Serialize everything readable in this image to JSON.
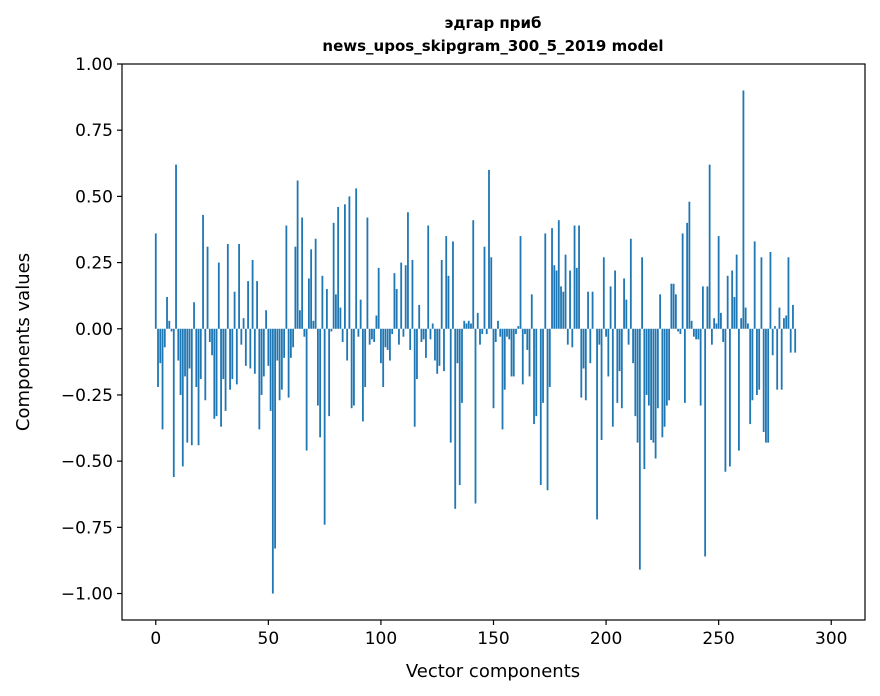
{
  "chart_data": {
    "type": "bar",
    "title_line1": "эдгар приб",
    "title_line2": "news_upos_skipgram_300_5_2019 model",
    "xlabel": "Vector components",
    "ylabel": "Components values",
    "xlim": [
      -15,
      315
    ],
    "ylim": [
      -1.1,
      1.0
    ],
    "xticks": [
      0,
      50,
      100,
      150,
      200,
      250,
      300
    ],
    "xtick_labels": [
      "0",
      "50",
      "100",
      "150",
      "200",
      "250",
      "300"
    ],
    "yticks": [
      1.0,
      0.75,
      0.5,
      0.25,
      0.0,
      -0.25,
      -0.5,
      -0.75,
      -1.0
    ],
    "ytick_labels": [
      "1.00",
      "0.75",
      "0.50",
      "0.25",
      "0.00",
      "−0.25",
      "−0.50",
      "−0.75",
      "−1.00"
    ],
    "bar_color": "#1f77b4",
    "grid": false,
    "values": [
      0.36,
      -0.22,
      -0.13,
      -0.38,
      -0.07,
      0.12,
      0.03,
      -0.01,
      -0.56,
      0.62,
      -0.12,
      -0.25,
      -0.52,
      -0.18,
      -0.43,
      -0.15,
      -0.44,
      0.1,
      -0.22,
      -0.44,
      -0.19,
      0.43,
      -0.27,
      0.31,
      -0.05,
      -0.1,
      -0.34,
      -0.33,
      0.25,
      -0.37,
      -0.19,
      -0.31,
      0.32,
      -0.23,
      -0.19,
      0.14,
      -0.21,
      0.32,
      -0.06,
      0.04,
      -0.14,
      0.18,
      -0.15,
      0.26,
      -0.17,
      0.18,
      -0.38,
      -0.25,
      -0.18,
      0.07,
      -0.14,
      -0.31,
      -1.0,
      -0.83,
      -0.12,
      -0.27,
      -0.23,
      -0.11,
      0.39,
      -0.26,
      -0.11,
      -0.07,
      0.31,
      0.56,
      0.07,
      0.42,
      -0.03,
      -0.46,
      0.19,
      0.3,
      0.03,
      0.34,
      -0.29,
      -0.41,
      0.2,
      -0.74,
      0.15,
      -0.33,
      -0.01,
      0.4,
      0.13,
      0.46,
      0.08,
      -0.05,
      0.47,
      -0.12,
      0.5,
      -0.3,
      -0.29,
      0.53,
      -0.03,
      0.11,
      -0.35,
      -0.22,
      0.42,
      -0.06,
      -0.04,
      -0.05,
      0.05,
      0.23,
      -0.13,
      -0.22,
      -0.07,
      -0.08,
      -0.12,
      -0.02,
      0.21,
      0.15,
      -0.06,
      0.25,
      -0.03,
      0.24,
      0.44,
      -0.08,
      0.26,
      -0.37,
      -0.19,
      0.09,
      -0.05,
      -0.04,
      -0.11,
      0.39,
      -0.04,
      0.02,
      -0.12,
      -0.17,
      -0.14,
      0.26,
      -0.16,
      0.35,
      0.2,
      -0.43,
      0.33,
      -0.68,
      -0.13,
      -0.59,
      -0.28,
      0.03,
      0.02,
      0.03,
      0.02,
      0.41,
      -0.66,
      0.06,
      -0.06,
      -0.02,
      0.31,
      -0.02,
      0.6,
      0.27,
      -0.3,
      -0.05,
      0.03,
      -0.03,
      -0.38,
      -0.23,
      -0.03,
      -0.04,
      -0.18,
      -0.18,
      -0.02,
      0.01,
      0.35,
      -0.21,
      -0.02,
      -0.08,
      -0.18,
      0.13,
      -0.36,
      -0.33,
      0.0,
      -0.59,
      -0.28,
      0.36,
      -0.61,
      -0.22,
      0.38,
      0.24,
      0.22,
      0.41,
      0.16,
      0.14,
      0.28,
      -0.06,
      0.22,
      -0.07,
      0.39,
      0.23,
      0.39,
      -0.26,
      -0.15,
      -0.27,
      0.14,
      -0.13,
      0.14,
      0.0,
      -0.72,
      -0.06,
      -0.42,
      0.27,
      -0.03,
      -0.18,
      0.16,
      -0.37,
      0.22,
      -0.28,
      -0.16,
      -0.3,
      0.19,
      0.11,
      -0.06,
      0.34,
      -0.13,
      -0.33,
      -0.43,
      -0.91,
      0.27,
      -0.53,
      -0.25,
      -0.29,
      -0.42,
      -0.43,
      -0.49,
      -0.3,
      0.13,
      -0.41,
      -0.37,
      -0.29,
      -0.27,
      0.17,
      0.17,
      0.13,
      -0.01,
      -0.02,
      0.36,
      -0.28,
      0.4,
      0.48,
      0.03,
      -0.03,
      -0.04,
      -0.04,
      -0.29,
      0.16,
      -0.86,
      0.16,
      0.62,
      -0.06,
      0.04,
      0.02,
      0.35,
      0.06,
      -0.05,
      -0.54,
      0.2,
      -0.52,
      0.22,
      0.12,
      0.28,
      -0.46,
      0.04,
      0.9,
      0.08,
      0.02,
      -0.36,
      -0.27,
      0.33,
      -0.25,
      -0.23,
      0.27,
      -0.39,
      -0.43,
      -0.43,
      0.29,
      -0.1,
      0.01,
      -0.23,
      0.08,
      -0.23,
      0.04,
      0.05,
      0.27,
      -0.09,
      0.09,
      -0.09
    ]
  }
}
